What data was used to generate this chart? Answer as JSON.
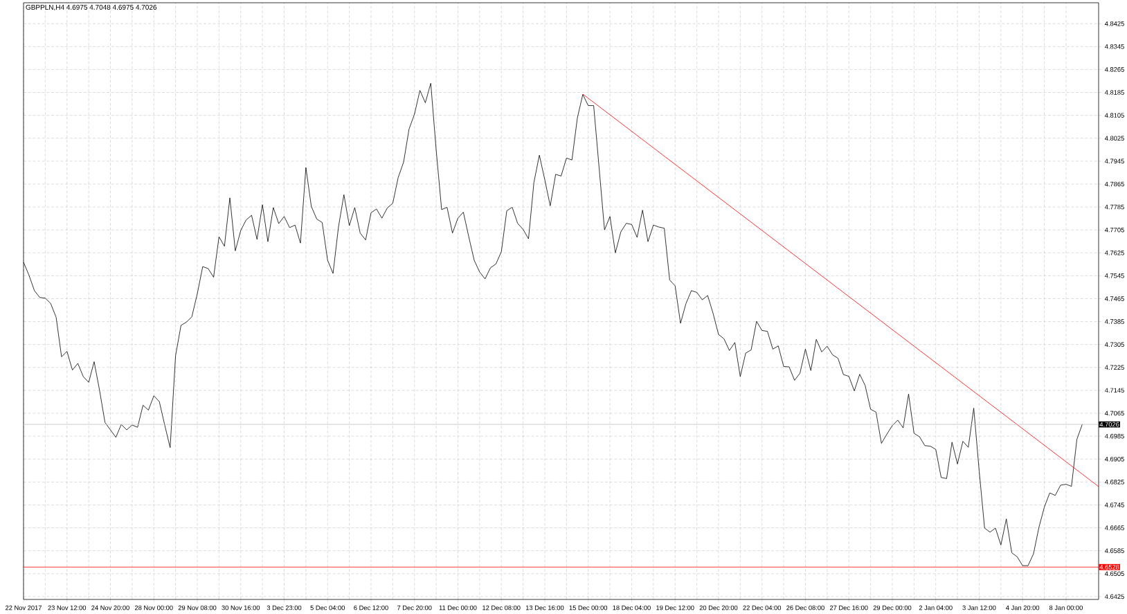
{
  "chart_data": {
    "type": "line",
    "title": "GBPPLN,H4  4.6975 4.7048 4.6975 4.7026",
    "ylim": [
      4.6415,
      4.8498
    ],
    "grid": true,
    "categories": [
      "22 Nov 2017",
      null,
      null,
      null,
      null,
      null,
      null,
      null,
      "23 Nov 12:00",
      null,
      null,
      null,
      null,
      null,
      null,
      null,
      "24 Nov 20:00",
      null,
      null,
      null,
      null,
      null,
      null,
      null,
      "28 Nov 00:00",
      null,
      null,
      null,
      null,
      null,
      null,
      null,
      "29 Nov 08:00",
      null,
      null,
      null,
      null,
      null,
      null,
      null,
      "30 Nov 16:00",
      null,
      null,
      null,
      null,
      null,
      null,
      null,
      "3 Dec 23:00",
      null,
      null,
      null,
      null,
      null,
      null,
      null,
      "5 Dec 04:00",
      null,
      null,
      null,
      null,
      null,
      null,
      null,
      "6 Dec 12:00",
      null,
      null,
      null,
      null,
      null,
      null,
      null,
      "7 Dec 20:00",
      null,
      null,
      null,
      null,
      null,
      null,
      null,
      "11 Dec 00:00",
      null,
      null,
      null,
      null,
      null,
      null,
      null,
      "12 Dec 08:00",
      null,
      null,
      null,
      null,
      null,
      null,
      null,
      "13 Dec 16:00",
      null,
      null,
      null,
      null,
      null,
      null,
      null,
      "15 Dec 00:00",
      null,
      null,
      null,
      null,
      null,
      null,
      null,
      "18 Dec 04:00",
      null,
      null,
      null,
      null,
      null,
      null,
      null,
      "19 Dec 12:00",
      null,
      null,
      null,
      null,
      null,
      null,
      null,
      "20 Dec 20:00",
      null,
      null,
      null,
      null,
      null,
      null,
      null,
      "22 Dec 04:00",
      null,
      null,
      null,
      null,
      null,
      null,
      null,
      "26 Dec 08:00",
      null,
      null,
      null,
      null,
      null,
      null,
      null,
      "27 Dec 16:00",
      null,
      null,
      null,
      null,
      null,
      null,
      null,
      "29 Dec 00:00",
      null,
      null,
      null,
      null,
      null,
      null,
      null,
      "2 Jan 04:00",
      null,
      null,
      null,
      null,
      null,
      null,
      null,
      "3 Jan 12:00",
      null,
      null,
      null,
      null,
      null,
      null,
      null,
      "4 Jan 20:00",
      null,
      null,
      null,
      null,
      null,
      null,
      null,
      "8 Jan 00:00",
      null,
      null,
      null,
      null,
      null,
      null
    ],
    "yticks": [
      4.6425,
      4.6505,
      4.6585,
      4.6665,
      4.6745,
      4.6825,
      4.6905,
      4.6985,
      4.7065,
      4.7145,
      4.7225,
      4.7305,
      4.7385,
      4.7465,
      4.7545,
      4.7625,
      4.7705,
      4.7785,
      4.7865,
      4.7945,
      4.8025,
      4.8105,
      4.8185,
      4.8265,
      4.8345,
      4.8425
    ],
    "ref_lines": [
      {
        "axis": "y",
        "value": 4.7026,
        "label": "4.7026",
        "color": "#c0c0c0"
      },
      {
        "axis": "y",
        "value": 4.6528,
        "label": "4.6528",
        "color": "#ff0000"
      }
    ],
    "series": [
      {
        "color": "#000000",
        "values": [
          4.7592,
          4.7547,
          4.7493,
          4.7469,
          4.7467,
          4.7448,
          4.74,
          4.7262,
          4.7281,
          4.7216,
          4.7239,
          4.7193,
          4.7173,
          4.7245,
          4.7145,
          4.7033,
          4.7007,
          4.6981,
          4.7026,
          4.7007,
          4.7024,
          4.7016,
          4.7093,
          4.7076,
          4.7126,
          4.7106,
          4.7024,
          4.6945,
          4.7266,
          4.7372,
          4.7383,
          4.7402,
          4.7482,
          4.7577,
          4.757,
          4.754,
          4.7681,
          4.7648,
          4.7817,
          4.7632,
          4.7703,
          4.774,
          4.7756,
          4.7672,
          4.7793,
          4.7664,
          4.7783,
          4.7727,
          4.7752,
          4.7713,
          4.7722,
          4.7659,
          4.7923,
          4.7787,
          4.7743,
          4.7731,
          4.7599,
          4.7553,
          4.7715,
          4.7828,
          4.772,
          4.7783,
          4.7694,
          4.767,
          4.7765,
          4.7778,
          4.7746,
          4.7782,
          4.7798,
          4.7888,
          4.7942,
          4.8057,
          4.8109,
          4.8192,
          4.8149,
          4.8217,
          4.7983,
          4.7776,
          4.7784,
          4.7694,
          4.7746,
          4.7767,
          4.7681,
          4.7599,
          4.7558,
          4.7534,
          4.7573,
          4.7586,
          4.7629,
          4.7772,
          4.7784,
          4.7728,
          4.7707,
          4.7674,
          4.7871,
          4.7966,
          4.788,
          4.7789,
          4.7899,
          4.7893,
          4.7956,
          4.7949,
          4.8096,
          4.8178,
          4.8139,
          4.8139,
          4.7923,
          4.7705,
          4.7752,
          4.7625,
          4.7698,
          4.7728,
          4.7724,
          4.7679,
          4.7774,
          4.7664,
          4.7722,
          4.7715,
          4.7711,
          4.753,
          4.751,
          4.7379,
          4.7448,
          4.7493,
          4.7487,
          4.7461,
          4.7476,
          4.7413,
          4.734,
          4.7325,
          4.7284,
          4.7312,
          4.7193,
          4.7275,
          4.7286,
          4.7386,
          4.7354,
          4.7351,
          4.7289,
          4.73,
          4.7228,
          4.7227,
          4.718,
          4.7205,
          4.7289,
          4.7214,
          4.7323,
          4.7279,
          4.7299,
          4.7269,
          4.7257,
          4.72,
          4.7194,
          4.7143,
          4.7201,
          4.7162,
          4.7079,
          4.7069,
          4.696,
          4.6992,
          4.7022,
          4.7041,
          4.7014,
          4.7132,
          4.6995,
          4.6983,
          4.6952,
          4.695,
          4.6939,
          4.6841,
          4.6837,
          4.6964,
          4.6888,
          4.6967,
          4.6946,
          4.7083,
          4.6864,
          4.6664,
          4.665,
          4.6664,
          4.6605,
          4.6696,
          4.6578,
          4.6564,
          4.6533,
          4.6533,
          4.6574,
          4.6666,
          4.6737,
          4.6787,
          4.6778,
          4.6814,
          4.6817,
          4.681,
          4.6974,
          4.7027,
          null,
          null,
          null
        ]
      },
      {
        "type": "line",
        "color": "#ff0000",
        "values": [
          null,
          null,
          null,
          null,
          null,
          null,
          null,
          null,
          null,
          null,
          null,
          null,
          null,
          null,
          null,
          null,
          null,
          null,
          null,
          null,
          null,
          null,
          null,
          null,
          null,
          null,
          null,
          null,
          null,
          null,
          null,
          null,
          null,
          null,
          null,
          null,
          null,
          null,
          null,
          null,
          null,
          null,
          null,
          null,
          null,
          null,
          null,
          null,
          null,
          null,
          null,
          null,
          null,
          null,
          null,
          null,
          null,
          null,
          null,
          null,
          null,
          null,
          null,
          null,
          null,
          null,
          null,
          null,
          null,
          null,
          null,
          null,
          null,
          null,
          null,
          null,
          null,
          null,
          null,
          null,
          null,
          null,
          null,
          null,
          null,
          null,
          null,
          null,
          null,
          null,
          null,
          null,
          null,
          null,
          null,
          null,
          null,
          null,
          null,
          null,
          null,
          null,
          null,
          4.8179,
          null,
          null,
          null,
          null,
          null,
          null,
          null,
          null,
          null,
          null,
          null,
          null,
          null,
          null,
          null,
          null,
          null,
          null,
          null,
          null,
          null,
          null,
          null,
          null,
          null,
          null,
          null,
          null,
          null,
          null,
          null,
          null,
          null,
          null,
          null,
          null,
          null,
          null,
          null,
          null,
          null,
          null,
          null,
          null,
          null,
          null,
          null,
          null,
          null,
          null,
          null,
          null,
          null,
          null,
          null,
          null,
          null,
          null,
          null,
          null,
          null,
          null,
          null,
          null,
          null,
          null,
          null,
          null,
          null,
          null,
          null,
          null,
          null,
          null,
          null,
          null,
          null,
          null,
          null,
          null,
          null,
          null,
          null,
          null,
          null,
          null,
          null,
          null,
          null,
          null,
          null,
          null,
          null,
          null,
          4.6809
        ]
      }
    ]
  }
}
